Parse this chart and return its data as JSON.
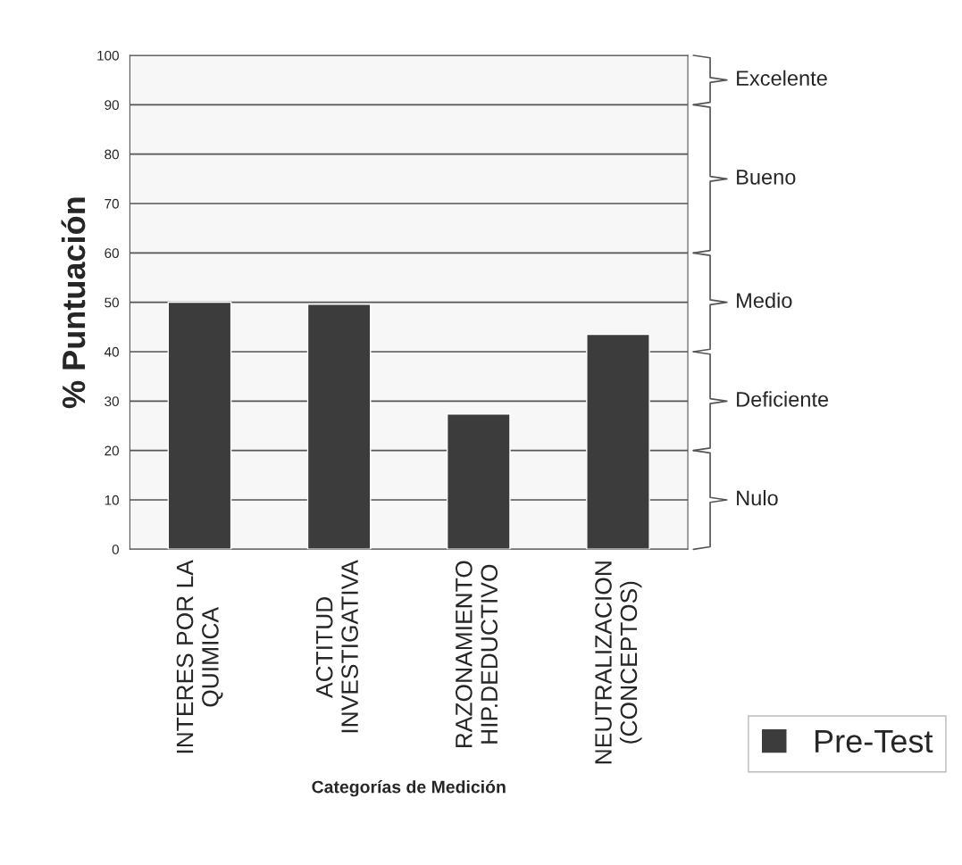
{
  "chart_data": {
    "type": "bar",
    "xlabel": "Categorías de Medición",
    "ylabel": "% Puntuación",
    "categories": [
      "INTERES POR LA\nQUIMICA",
      "ACTITUD\nINVESTIGATIVA",
      "RAZONAMIENTO\nHIP.DEDUCTIVO",
      "NEUTRALIZACION\n(CONCEPTOS)"
    ],
    "series": [
      {
        "name": "Pre-Test",
        "color": "#3c3c3c",
        "values": [
          50,
          49.6,
          27.4,
          43.5
        ]
      }
    ],
    "ylim": [
      0,
      100
    ],
    "yticks": [
      0,
      10,
      20,
      30,
      40,
      50,
      60,
      70,
      80,
      90,
      100
    ],
    "grid": "y",
    "legend": "bottom right",
    "bands": [
      {
        "axis": "y",
        "from": 90,
        "to": 100,
        "label": "Excelente"
      },
      {
        "axis": "y",
        "from": 60,
        "to": 90,
        "label": "Bueno"
      },
      {
        "axis": "y",
        "from": 40,
        "to": 60,
        "label": "Medio"
      },
      {
        "axis": "y",
        "from": 20,
        "to": 40,
        "label": "Deficiente"
      },
      {
        "axis": "y",
        "from": 0,
        "to": 20,
        "label": "Nulo"
      }
    ]
  }
}
